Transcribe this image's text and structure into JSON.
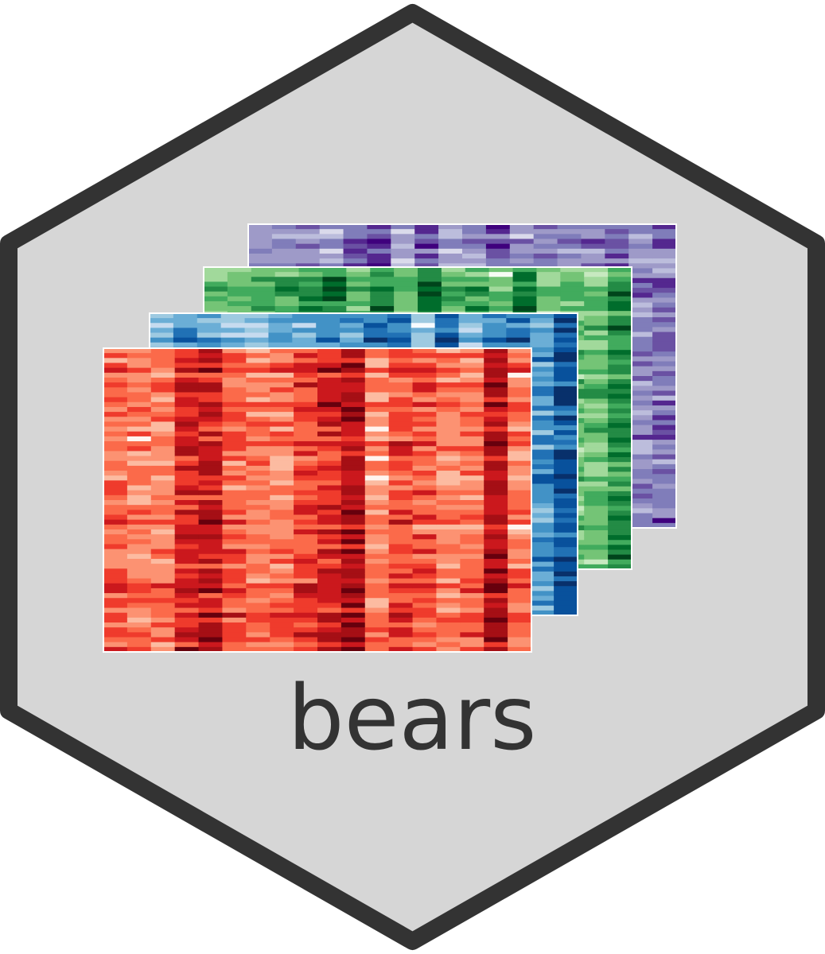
{
  "logo": {
    "text": "bears",
    "colors": {
      "hex_fill": "#d6d6d6",
      "hex_border": "#333333",
      "text": "#333333"
    }
  },
  "heatmaps": [
    {
      "name": "purple",
      "palette": [
        "#f2f0f7",
        "#dadaeb",
        "#bcbddc",
        "#9e9ac8",
        "#807dba",
        "#6a51a3",
        "#54278f",
        "#3f007d"
      ]
    },
    {
      "name": "green",
      "palette": [
        "#f7fcf5",
        "#c7e9c0",
        "#a1d99b",
        "#74c476",
        "#41ab5d",
        "#238b45",
        "#006d2c",
        "#00441b"
      ]
    },
    {
      "name": "blue",
      "palette": [
        "#f7fbff",
        "#c6dbef",
        "#9ecae1",
        "#6baed6",
        "#4292c6",
        "#2171b5",
        "#08519c",
        "#08306b"
      ]
    },
    {
      "name": "red",
      "palette": [
        "#fff5f0",
        "#fcbba1",
        "#fc9272",
        "#fb6a4a",
        "#ef3b2c",
        "#cb181d",
        "#a50f15",
        "#67000d"
      ]
    }
  ]
}
